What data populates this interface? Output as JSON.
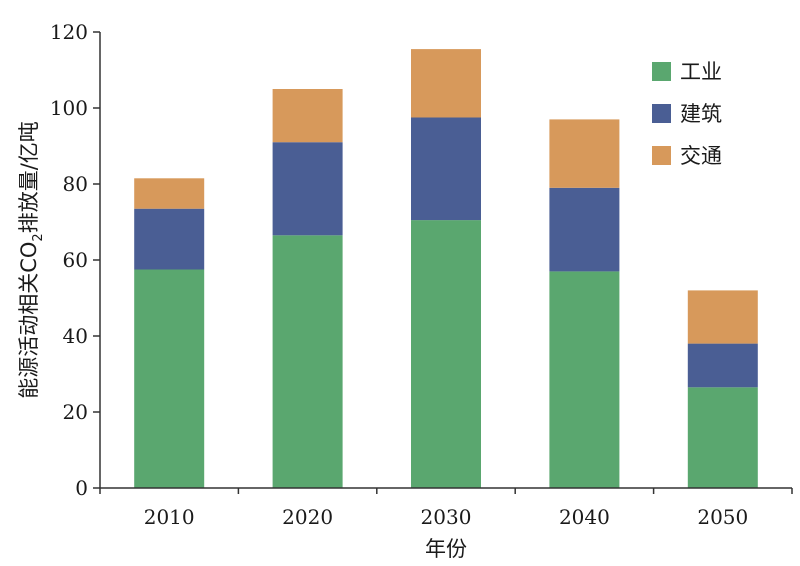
{
  "chart_data": {
    "type": "bar",
    "stacked": true,
    "categories": [
      "2010",
      "2020",
      "2030",
      "2040",
      "2050"
    ],
    "series": [
      {
        "name": "工业",
        "color": "#5aa76f",
        "values": [
          57.5,
          66.5,
          70.5,
          57.0,
          26.5
        ]
      },
      {
        "name": "建筑",
        "color": "#4a5e94",
        "values": [
          16.0,
          24.5,
          27.0,
          22.0,
          11.5
        ]
      },
      {
        "name": "交通",
        "color": "#d7995b",
        "values": [
          8.0,
          14.0,
          18.0,
          18.0,
          14.0
        ]
      }
    ],
    "title": "",
    "xlabel": "年份",
    "ylabel_main": "能源活动相关CO",
    "ylabel_sub": "2",
    "ylabel_rest": "排放量/亿吨",
    "ylim": [
      0,
      120
    ],
    "yticks": [
      "0",
      "20",
      "40",
      "60",
      "80",
      "100",
      "120"
    ],
    "grid": false,
    "legend_position": "top-right"
  }
}
